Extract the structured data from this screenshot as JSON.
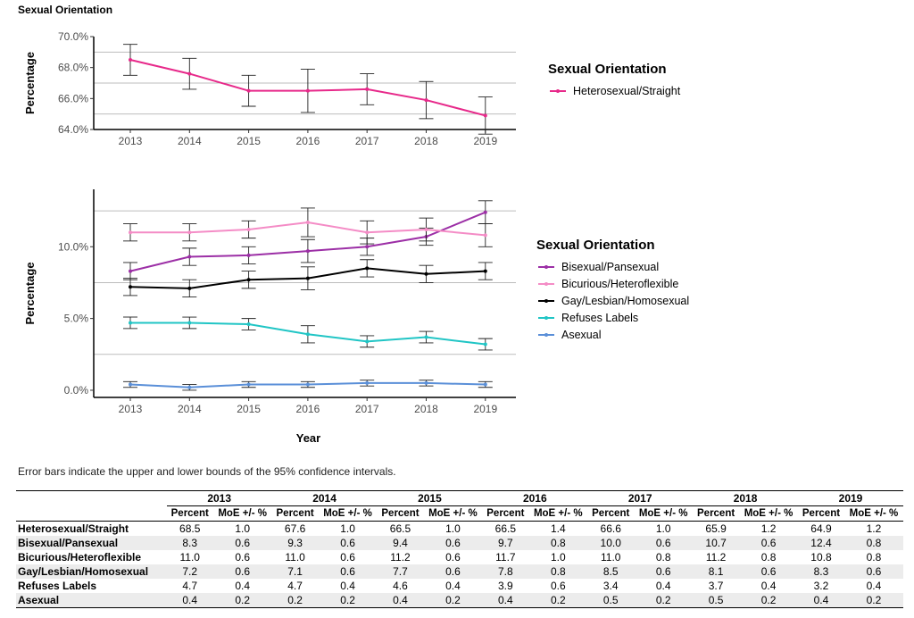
{
  "page_title": "Sexual Orientation",
  "note": "Error bars indicate the upper and lower bounds of the 95% confidence intervals.",
  "chart_data": [
    {
      "type": "line",
      "title": "",
      "xlabel": "",
      "ylabel": "Percentage",
      "x": [
        "2013",
        "2014",
        "2015",
        "2016",
        "2017",
        "2018",
        "2019"
      ],
      "ylim": [
        64.0,
        70.0
      ],
      "yticks": [
        "64.0%",
        "66.0%",
        "68.0%",
        "70.0%"
      ],
      "ytick_values": [
        64,
        66,
        68,
        70
      ],
      "hlines": [
        65,
        67,
        69
      ],
      "legend_title": "Sexual Orientation",
      "legend_position": "right",
      "series": [
        {
          "name": "Heterosexual/Straight",
          "color": "#e7298a",
          "values": [
            68.5,
            67.6,
            66.5,
            66.5,
            66.6,
            65.9,
            64.9
          ],
          "moe": [
            1.0,
            1.0,
            1.0,
            1.4,
            1.0,
            1.2,
            1.2
          ]
        }
      ]
    },
    {
      "type": "line",
      "title": "",
      "xlabel": "Year",
      "ylabel": "Percentage",
      "x": [
        "2013",
        "2014",
        "2015",
        "2016",
        "2017",
        "2018",
        "2019"
      ],
      "ylim": [
        -0.5,
        14.0
      ],
      "yticks": [
        "0.0%",
        "5.0%",
        "10.0%"
      ],
      "ytick_values": [
        0,
        5,
        10
      ],
      "hlines": [
        2.5,
        7.5,
        12.5
      ],
      "legend_title": "Sexual Orientation",
      "legend_position": "right",
      "series": [
        {
          "name": "Bisexual/Pansexual",
          "color": "#9c2fa6",
          "values": [
            8.3,
            9.3,
            9.4,
            9.7,
            10.0,
            10.7,
            12.4
          ],
          "moe": [
            0.6,
            0.6,
            0.6,
            0.8,
            0.6,
            0.6,
            0.8
          ]
        },
        {
          "name": "Bicurious/Heteroflexible",
          "color": "#f48cc6",
          "values": [
            11.0,
            11.0,
            11.2,
            11.7,
            11.0,
            11.2,
            10.8
          ],
          "moe": [
            0.6,
            0.6,
            0.6,
            1.0,
            0.8,
            0.8,
            0.8
          ]
        },
        {
          "name": "Gay/Lesbian/Homosexual",
          "color": "#000000",
          "values": [
            7.2,
            7.1,
            7.7,
            7.8,
            8.5,
            8.1,
            8.3
          ],
          "moe": [
            0.6,
            0.6,
            0.6,
            0.8,
            0.6,
            0.6,
            0.6
          ]
        },
        {
          "name": "Refuses Labels",
          "color": "#20c5c5",
          "values": [
            4.7,
            4.7,
            4.6,
            3.9,
            3.4,
            3.7,
            3.2
          ],
          "moe": [
            0.4,
            0.4,
            0.4,
            0.6,
            0.4,
            0.4,
            0.4
          ]
        },
        {
          "name": "Asexual",
          "color": "#5a8fd8",
          "values": [
            0.4,
            0.2,
            0.4,
            0.4,
            0.5,
            0.5,
            0.4
          ],
          "moe": [
            0.2,
            0.2,
            0.2,
            0.2,
            0.2,
            0.2,
            0.2
          ]
        }
      ]
    }
  ],
  "table": {
    "years": [
      "2013",
      "2014",
      "2015",
      "2016",
      "2017",
      "2018",
      "2019"
    ],
    "sub_headers": [
      "Percent",
      "MoE +/- %"
    ],
    "rows": [
      {
        "label": "Heterosexual/Straight",
        "cells": [
          "68.5",
          "1.0",
          "67.6",
          "1.0",
          "66.5",
          "1.0",
          "66.5",
          "1.4",
          "66.6",
          "1.0",
          "65.9",
          "1.2",
          "64.9",
          "1.2"
        ]
      },
      {
        "label": "Bisexual/Pansexual",
        "cells": [
          "8.3",
          "0.6",
          "9.3",
          "0.6",
          "9.4",
          "0.6",
          "9.7",
          "0.8",
          "10.0",
          "0.6",
          "10.7",
          "0.6",
          "12.4",
          "0.8"
        ]
      },
      {
        "label": "Bicurious/Heteroflexible",
        "cells": [
          "11.0",
          "0.6",
          "11.0",
          "0.6",
          "11.2",
          "0.6",
          "11.7",
          "1.0",
          "11.0",
          "0.8",
          "11.2",
          "0.8",
          "10.8",
          "0.8"
        ]
      },
      {
        "label": "Gay/Lesbian/Homosexual",
        "cells": [
          "7.2",
          "0.6",
          "7.1",
          "0.6",
          "7.7",
          "0.6",
          "7.8",
          "0.8",
          "8.5",
          "0.6",
          "8.1",
          "0.6",
          "8.3",
          "0.6"
        ]
      },
      {
        "label": "Refuses Labels",
        "cells": [
          "4.7",
          "0.4",
          "4.7",
          "0.4",
          "4.6",
          "0.4",
          "3.9",
          "0.6",
          "3.4",
          "0.4",
          "3.7",
          "0.4",
          "3.2",
          "0.4"
        ]
      },
      {
        "label": "Asexual",
        "cells": [
          "0.4",
          "0.2",
          "0.2",
          "0.2",
          "0.4",
          "0.2",
          "0.4",
          "0.2",
          "0.5",
          "0.2",
          "0.5",
          "0.2",
          "0.4",
          "0.2"
        ]
      }
    ]
  }
}
